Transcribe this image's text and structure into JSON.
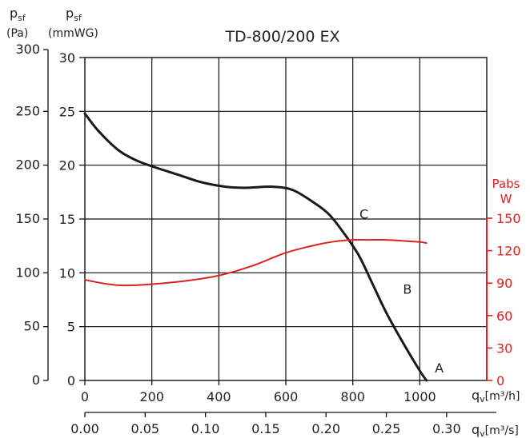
{
  "chart_data": {
    "type": "line",
    "title": "TD-800/200 EX",
    "left_axes": {
      "pa": {
        "label_main": "p",
        "label_sub": "sf",
        "unit": "(Pa)",
        "ticks": [
          0,
          50,
          100,
          150,
          200,
          250,
          300
        ],
        "range": [
          0,
          300
        ]
      },
      "mmwg": {
        "label_main": "p",
        "label_sub": "sf",
        "unit": "(mmWG)",
        "ticks": [
          0,
          5,
          10,
          15,
          20,
          25,
          30
        ],
        "range": [
          0,
          30
        ]
      }
    },
    "right_axis": {
      "label_line1": "Pabs",
      "label_line2": "W",
      "ticks": [
        0,
        30,
        60,
        90,
        120,
        150
      ],
      "range": [
        0,
        150
      ]
    },
    "bottom_axes": {
      "m3h": {
        "label_main": "q",
        "label_sub": "v",
        "unit": "[m³/h]",
        "ticks": [
          "0",
          "200",
          "400",
          "600",
          "800",
          "1000"
        ],
        "range": [
          0,
          1200
        ]
      },
      "m3s": {
        "label_main": "q",
        "label_sub": "v",
        "unit": "[m³/s]",
        "ticks": [
          "0.00",
          "0.05",
          "0.10",
          "0.15",
          "0.20",
          "0.25",
          "0.30"
        ],
        "range": [
          0,
          0.3333
        ]
      }
    },
    "grid": true,
    "series": [
      {
        "axis": "pa",
        "color": "#1a1a1a",
        "x_m3h": [
          0,
          40,
          100,
          150,
          200,
          280,
          350,
          420,
          480,
          560,
          620,
          680,
          730,
          780,
          820,
          860,
          900,
          950,
          1000,
          1020
        ],
        "y": [
          248,
          232,
          214,
          205,
          199,
          191,
          184,
          180,
          179,
          180,
          177,
          166,
          154,
          134,
          115,
          89,
          63,
          35,
          9,
          0
        ]
      },
      {
        "axis": "w",
        "color": "#e02020",
        "x_m3h": [
          0,
          50,
          100,
          150,
          200,
          300,
          400,
          500,
          600,
          700,
          760,
          800,
          850,
          900,
          950,
          1000,
          1020
        ],
        "y": [
          93,
          90,
          88,
          88,
          89,
          92,
          97,
          106,
          118,
          126,
          129,
          130,
          130,
          130,
          129,
          128,
          127
        ]
      }
    ],
    "point_labels": [
      {
        "text": "C",
        "x_m3h": 820,
        "y_pa": 155
      },
      {
        "text": "B",
        "x_m3h": 950,
        "y_pa": 85
      },
      {
        "text": "A",
        "x_m3h": 1045,
        "y_pa": 12
      }
    ]
  }
}
